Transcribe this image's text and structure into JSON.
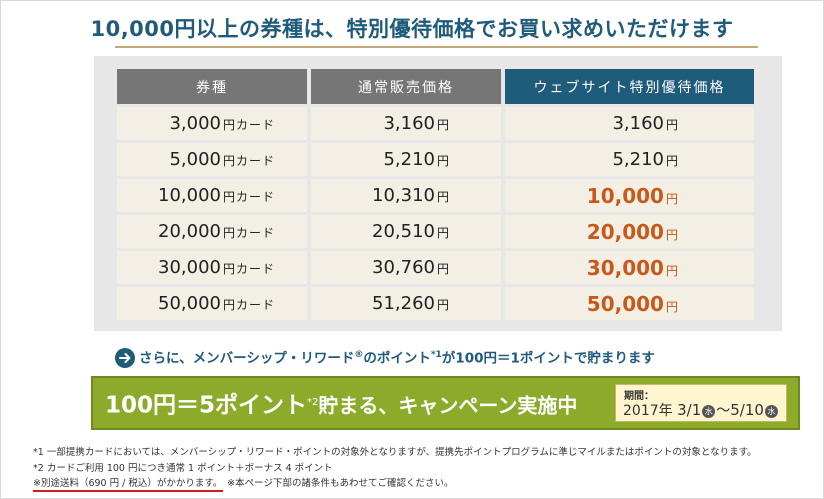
{
  "headline": "10,000円以上の券種は、特別優待価格でお買い求めいただけます",
  "table": {
    "headers": [
      "券種",
      "通常販売価格",
      "ウェブサイト特別優待価格"
    ],
    "rows": [
      {
        "card": "3,000",
        "card_unit": "円カード",
        "normal": "3,160",
        "special": "3,160",
        "highlight": false
      },
      {
        "card": "5,000",
        "card_unit": "円カード",
        "normal": "5,210",
        "special": "5,210",
        "highlight": false
      },
      {
        "card": "10,000",
        "card_unit": "円カード",
        "normal": "10,310",
        "special": "10,000",
        "highlight": true
      },
      {
        "card": "20,000",
        "card_unit": "円カード",
        "normal": "20,510",
        "special": "20,000",
        "highlight": true
      },
      {
        "card": "30,000",
        "card_unit": "円カード",
        "normal": "30,760",
        "special": "30,000",
        "highlight": true
      },
      {
        "card": "50,000",
        "card_unit": "円カード",
        "normal": "51,260",
        "special": "50,000",
        "highlight": true
      }
    ],
    "yen": "円"
  },
  "reward": {
    "text_a": "さらに、メンバーシップ・リワード",
    "reg": "®",
    "text_b": "のポイント",
    "note_mark": "*1",
    "text_c": "が100円＝1ポイントで貯まります"
  },
  "banner": {
    "part_a": "100円",
    "eq": "＝",
    "part_b": "5ポイント",
    "note_mark": "*2",
    "part_c": "貯まる、キャンペーン実施中",
    "period_label": "期間：",
    "period_year": "2017年",
    "period_start": "3/1",
    "period_start_day": "水",
    "period_sep": "～",
    "period_end": "5/10",
    "period_end_day": "水"
  },
  "notes": {
    "n1": "*1 一部提携カードにおいては、メンバーシップ・リワード・ポイントの対象外となりますが、提携先ポイントプログラムに準じマイルまたはポイントの対象となります。",
    "n2": "*2 カードご利用 100 円につき通常 1 ポイント＋ボーナス 4 ポイント",
    "n3a": "※別途送料（690 円 / 税込）がかかります。",
    "n3b": "※本ページ下部の諸条件もあわせてご確認ください。"
  },
  "colors": {
    "headline": "#1f5b7a",
    "highlight": "#c75a1a",
    "banner": "#8cab2b",
    "header_gray": "#767676",
    "header_web": "#1f5b7a"
  },
  "icons": {
    "reward_arrow": "arrow-right-circle-icon"
  }
}
